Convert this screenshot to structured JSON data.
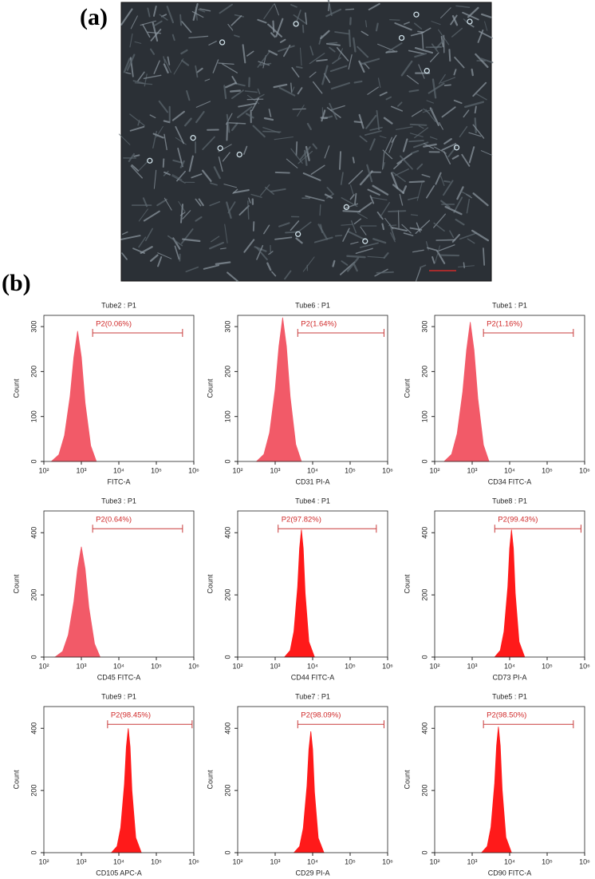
{
  "panels": {
    "a": {
      "label": "(a)"
    },
    "b": {
      "label": "(b)"
    }
  },
  "chart_data": [
    {
      "type": "area",
      "title": "Tube2 : P1",
      "x_label": "FITC-A",
      "y_label": "Count",
      "color": "#f25a68",
      "xscale": "log",
      "x": [
        158,
        251,
        355,
        501,
        631,
        794,
        1000,
        1259,
        1778,
        2512
      ],
      "values": [
        0,
        15,
        58,
        145,
        232,
        290,
        232,
        130,
        35,
        0
      ],
      "xlim": [
        100,
        1000000
      ],
      "ylim": [
        0,
        325
      ],
      "yticks": [
        0,
        100,
        200,
        300
      ],
      "xticks": [
        {
          "value": 100,
          "label": "10²"
        },
        {
          "value": 1000,
          "label": "10³"
        },
        {
          "value": 10000,
          "label": "10⁴"
        },
        {
          "value": 100000,
          "label": "10⁵"
        },
        {
          "value": 1000000,
          "label": "10⁶"
        }
      ],
      "gate": {
        "label": "P2(0.06%)",
        "range": [
          2000,
          500000
        ],
        "y": 286
      }
    },
    {
      "type": "area",
      "title": "Tube6 : P1",
      "x_label": "CD31 PI-A",
      "y_label": "Count",
      "color": "#f25a68",
      "xscale": "log",
      "x": [
        316,
        501,
        708,
        1000,
        1259,
        1585,
        1995,
        2512,
        3548,
        5012
      ],
      "values": [
        0,
        16,
        64,
        160,
        256,
        320,
        256,
        144,
        38,
        0
      ],
      "xlim": [
        100,
        1000000
      ],
      "ylim": [
        0,
        325
      ],
      "yticks": [
        0,
        100,
        200,
        300
      ],
      "xticks": [
        {
          "value": 100,
          "label": "10²"
        },
        {
          "value": 1000,
          "label": "10³"
        },
        {
          "value": 10000,
          "label": "10⁴"
        },
        {
          "value": 100000,
          "label": "10⁵"
        },
        {
          "value": 1000000,
          "label": "10⁶"
        }
      ],
      "gate": {
        "label": "P2(1.64%)",
        "range": [
          4000,
          800000
        ],
        "y": 286
      }
    },
    {
      "type": "area",
      "title": "Tube1 : P1",
      "x_label": "CD34 FITC-A",
      "y_label": "Count",
      "color": "#f25a68",
      "xscale": "log",
      "x": [
        178,
        282,
        398,
        562,
        708,
        891,
        1122,
        1413,
        1995,
        2818
      ],
      "values": [
        0,
        16,
        62,
        155,
        248,
        310,
        248,
        140,
        37,
        0
      ],
      "xlim": [
        100,
        1000000
      ],
      "ylim": [
        0,
        325
      ],
      "yticks": [
        0,
        100,
        200,
        300
      ],
      "xticks": [
        {
          "value": 100,
          "label": "10²"
        },
        {
          "value": 1000,
          "label": "10³"
        },
        {
          "value": 10000,
          "label": "10⁴"
        },
        {
          "value": 100000,
          "label": "10⁵"
        },
        {
          "value": 1000000,
          "label": "10⁶"
        }
      ],
      "gate": {
        "label": "P2(1.16%)",
        "range": [
          2000,
          500000
        ],
        "y": 286
      }
    },
    {
      "type": "area",
      "title": "Tube3 : P1",
      "x_label": "CD45 FITC-A",
      "y_label": "Count",
      "color": "#f25a68",
      "xscale": "log",
      "x": [
        200,
        316,
        447,
        631,
        794,
        1000,
        1259,
        1585,
        2239,
        3162
      ],
      "values": [
        0,
        18,
        71,
        178,
        284,
        355,
        284,
        160,
        43,
        0
      ],
      "xlim": [
        100,
        1000000
      ],
      "ylim": [
        0,
        470
      ],
      "yticks": [
        0,
        200,
        400
      ],
      "xticks": [
        {
          "value": 100,
          "label": "10²"
        },
        {
          "value": 1000,
          "label": "10³"
        },
        {
          "value": 10000,
          "label": "10⁴"
        },
        {
          "value": 100000,
          "label": "10⁵"
        },
        {
          "value": 1000000,
          "label": "10⁶"
        }
      ],
      "gate": {
        "label": "P2(0.64%)",
        "range": [
          2000,
          500000
        ],
        "y": 413
      }
    },
    {
      "type": "area",
      "title": "Tube4 : P1",
      "x_label": "CD44 FITC-A",
      "y_label": "Count",
      "color": "#ff1a1a",
      "xscale": "log",
      "x": [
        1778,
        2512,
        3162,
        3981,
        4467,
        5012,
        5623,
        6310,
        7943,
        11220
      ],
      "values": [
        0,
        21,
        82,
        226,
        349,
        410,
        349,
        205,
        49,
        0
      ],
      "xlim": [
        100,
        1000000
      ],
      "ylim": [
        0,
        470
      ],
      "yticks": [
        0,
        200,
        400
      ],
      "xticks": [
        {
          "value": 100,
          "label": "10²"
        },
        {
          "value": 1000,
          "label": "10³"
        },
        {
          "value": 10000,
          "label": "10⁴"
        },
        {
          "value": 100000,
          "label": "10⁵"
        },
        {
          "value": 1000000,
          "label": "10⁶"
        }
      ],
      "gate": {
        "label": "P2(97.82%)",
        "range": [
          1200,
          500000
        ],
        "y": 413
      }
    },
    {
      "type": "area",
      "title": "Tube8 : P1",
      "x_label": "CD73 PI-A",
      "y_label": "Count",
      "color": "#ff1a1a",
      "xscale": "log",
      "x": [
        3981,
        5623,
        7079,
        8913,
        10000,
        11220,
        12589,
        14125,
        17783,
        25119
      ],
      "values": [
        0,
        21,
        82,
        226,
        349,
        410,
        349,
        205,
        49,
        0
      ],
      "xlim": [
        100,
        1000000
      ],
      "ylim": [
        0,
        470
      ],
      "yticks": [
        0,
        200,
        400
      ],
      "xticks": [
        {
          "value": 100,
          "label": "10²"
        },
        {
          "value": 1000,
          "label": "10³"
        },
        {
          "value": 10000,
          "label": "10⁴"
        },
        {
          "value": 100000,
          "label": "10⁵"
        },
        {
          "value": 1000000,
          "label": "10⁶"
        }
      ],
      "gate": {
        "label": "P2(99.43%)",
        "range": [
          4000,
          800000
        ],
        "y": 413
      }
    },
    {
      "type": "area",
      "title": "Tube9 : P1",
      "x_label": "CD105 APC-A",
      "y_label": "Count",
      "color": "#ff1a1a",
      "xscale": "log",
      "x": [
        6310,
        8913,
        11220,
        14125,
        15849,
        17783,
        19953,
        22387,
        28184,
        39811
      ],
      "values": [
        0,
        20,
        80,
        220,
        340,
        400,
        340,
        200,
        48,
        0
      ],
      "xlim": [
        100,
        1000000
      ],
      "ylim": [
        0,
        470
      ],
      "yticks": [
        0,
        200,
        400
      ],
      "xticks": [
        {
          "value": 100,
          "label": "10²"
        },
        {
          "value": 1000,
          "label": "10³"
        },
        {
          "value": 10000,
          "label": "10⁴"
        },
        {
          "value": 100000,
          "label": "10⁵"
        },
        {
          "value": 1000000,
          "label": "10⁶"
        }
      ],
      "gate": {
        "label": "P2(98.45%)",
        "range": [
          5000,
          900000
        ],
        "y": 413
      }
    },
    {
      "type": "area",
      "title": "Tube7 : P1",
      "x_label": "CD29 PI-A",
      "y_label": "Count",
      "color": "#ff1a1a",
      "xscale": "log",
      "x": [
        3162,
        4467,
        5623,
        7079,
        7943,
        8913,
        10000,
        11220,
        14125,
        19953
      ],
      "values": [
        0,
        20,
        78,
        215,
        332,
        390,
        332,
        195,
        47,
        0
      ],
      "xlim": [
        100,
        1000000
      ],
      "ylim": [
        0,
        470
      ],
      "yticks": [
        0,
        200,
        400
      ],
      "xticks": [
        {
          "value": 100,
          "label": "10²"
        },
        {
          "value": 1000,
          "label": "10³"
        },
        {
          "value": 10000,
          "label": "10⁴"
        },
        {
          "value": 100000,
          "label": "10⁵"
        },
        {
          "value": 1000000,
          "label": "10⁶"
        }
      ],
      "gate": {
        "label": "P2(98.09%)",
        "range": [
          4000,
          800000
        ],
        "y": 413
      }
    },
    {
      "type": "area",
      "title": "Tube5 : P1",
      "x_label": "CD90 FITC-A",
      "y_label": "Count",
      "color": "#ff1a1a",
      "xscale": "log",
      "x": [
        1778,
        2512,
        3162,
        3981,
        4467,
        5012,
        5623,
        6310,
        7943,
        11220
      ],
      "values": [
        0,
        20,
        81,
        223,
        344,
        405,
        344,
        203,
        49,
        0
      ],
      "xlim": [
        100,
        1000000
      ],
      "ylim": [
        0,
        470
      ],
      "yticks": [
        0,
        200,
        400
      ],
      "xticks": [
        {
          "value": 100,
          "label": "10²"
        },
        {
          "value": 1000,
          "label": "10³"
        },
        {
          "value": 10000,
          "label": "10⁴"
        },
        {
          "value": 100000,
          "label": "10⁵"
        },
        {
          "value": 1000000,
          "label": "10⁶"
        }
      ],
      "gate": {
        "label": "P2(98.50%)",
        "range": [
          2000,
          500000
        ],
        "y": 413
      }
    }
  ]
}
